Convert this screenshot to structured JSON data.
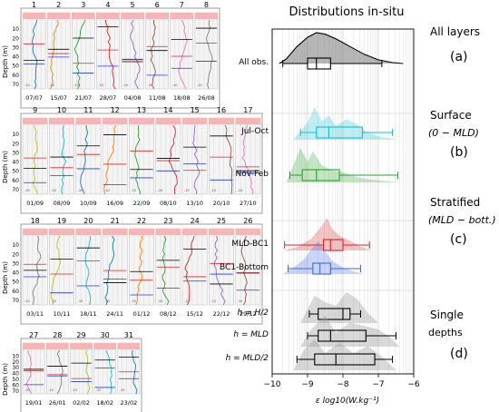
{
  "profiles": {
    "depth_axis_label": "Depth (m)",
    "depth_ticks": [
      10,
      20,
      30,
      40,
      50,
      60,
      70
    ],
    "rows": [
      {
        "panels": [
          {
            "num": "1",
            "date": "07/07"
          },
          {
            "num": "2",
            "date": "15/07"
          },
          {
            "num": "3",
            "date": "21/07"
          },
          {
            "num": "4",
            "date": "28/07"
          },
          {
            "num": "5",
            "date": "04/08"
          },
          {
            "num": "6",
            "date": "11/08"
          },
          {
            "num": "7",
            "date": "18/08"
          },
          {
            "num": "8",
            "date": "26/08"
          }
        ]
      },
      {
        "panels": [
          {
            "num": "9",
            "date": "01/09"
          },
          {
            "num": "10",
            "date": "08/09"
          },
          {
            "num": "11",
            "date": "10/09"
          },
          {
            "num": "12",
            "date": "16/09"
          },
          {
            "num": "13",
            "date": "22/09"
          },
          {
            "num": "14",
            "date": "08/10"
          },
          {
            "num": "15",
            "date": "13/10"
          },
          {
            "num": "16",
            "date": "20/10"
          },
          {
            "num": "17",
            "date": "27/10"
          }
        ]
      },
      {
        "panels": [
          {
            "num": "18",
            "date": "03/11"
          },
          {
            "num": "19",
            "date": "10/11"
          },
          {
            "num": "20",
            "date": "18/11"
          },
          {
            "num": "21",
            "date": "24/11"
          },
          {
            "num": "22",
            "date": "01/12"
          },
          {
            "num": "23",
            "date": "08/12"
          },
          {
            "num": "24",
            "date": "15/12"
          },
          {
            "num": "25",
            "date": "22/12"
          },
          {
            "num": "26",
            "date": "29/12"
          }
        ]
      },
      {
        "panels": [
          {
            "num": "27",
            "date": "19/01"
          },
          {
            "num": "28",
            "date": "26/01"
          },
          {
            "num": "29",
            "date": "02/02"
          },
          {
            "num": "30",
            "date": "18/02"
          },
          {
            "num": "31",
            "date": "23/02"
          }
        ]
      }
    ],
    "line_colors": [
      "#1f77b4",
      "#ff7f0e",
      "#2ca02c",
      "#d62728",
      "#9467bd",
      "#8c564b",
      "#e377c2",
      "#7f7f7f",
      "#bcbd22",
      "#17becf"
    ],
    "header_color": "#f4b6b6"
  },
  "chart_data": {
    "type": "box",
    "title": "Distributions in-situ",
    "xlabel": "ε  log10(W.kg⁻¹)",
    "xlim": [
      -10,
      -6
    ],
    "xticks": [
      -10,
      -9,
      -8,
      -7,
      -6
    ],
    "groups": [
      {
        "label": "All obs.",
        "color": "#000000",
        "box": {
          "whisker_low": -9.7,
          "q1": -9.0,
          "median": -8.75,
          "q3": -8.35,
          "whisker_high": -6.9
        },
        "density": [
          [
            -9.8,
            0
          ],
          [
            -9.6,
            0.15
          ],
          [
            -9.3,
            0.55
          ],
          [
            -9.0,
            0.85
          ],
          [
            -8.75,
            1.0
          ],
          [
            -8.5,
            0.95
          ],
          [
            -8.2,
            0.8
          ],
          [
            -7.8,
            0.55
          ],
          [
            -7.4,
            0.3
          ],
          [
            -7.0,
            0.12
          ],
          [
            -6.6,
            0.03
          ],
          [
            -6.3,
            0
          ]
        ]
      },
      {
        "label": "Jul-Oct",
        "color": "#17becf",
        "box": {
          "whisker_low": -9.2,
          "q1": -8.75,
          "median": -8.4,
          "q3": -7.45,
          "whisker_high": -6.6
        },
        "density": [
          [
            -9.4,
            0
          ],
          [
            -9.2,
            0.25
          ],
          [
            -9.0,
            0.5
          ],
          [
            -8.8,
            0.95
          ],
          [
            -8.6,
            0.55
          ],
          [
            -8.4,
            0.7
          ],
          [
            -8.2,
            0.4
          ],
          [
            -7.9,
            0.6
          ],
          [
            -7.6,
            0.45
          ],
          [
            -7.3,
            0.2
          ],
          [
            -7.0,
            0.1
          ],
          [
            -6.7,
            0.05
          ],
          [
            -6.5,
            0
          ]
        ]
      },
      {
        "label": "Nov-Feb",
        "color": "#2ca02c",
        "box": {
          "whisker_low": -9.5,
          "q1": -9.15,
          "median": -8.75,
          "q3": -8.1,
          "whisker_high": -6.45
        },
        "density": [
          [
            -9.6,
            0
          ],
          [
            -9.4,
            0.5
          ],
          [
            -9.2,
            1.0
          ],
          [
            -9.0,
            0.6
          ],
          [
            -8.85,
            0.9
          ],
          [
            -8.6,
            0.5
          ],
          [
            -8.3,
            0.35
          ],
          [
            -8.0,
            0.3
          ],
          [
            -7.6,
            0.15
          ],
          [
            -7.2,
            0.08
          ],
          [
            -6.8,
            0.04
          ],
          [
            -6.4,
            0
          ]
        ]
      },
      {
        "label": "MLD-BC1",
        "color": "#d62728",
        "box": {
          "whisker_low": -9.65,
          "q1": -8.55,
          "median": -8.35,
          "q3": -8.0,
          "whisker_high": -7.25
        },
        "density": [
          [
            -9.7,
            0
          ],
          [
            -9.3,
            0.1
          ],
          [
            -8.9,
            0.35
          ],
          [
            -8.6,
            0.75
          ],
          [
            -8.45,
            1.0
          ],
          [
            -8.3,
            0.65
          ],
          [
            -8.1,
            0.45
          ],
          [
            -7.8,
            0.3
          ],
          [
            -7.5,
            0.12
          ],
          [
            -7.2,
            0
          ]
        ]
      },
      {
        "label": "BC1-Bottom",
        "color": "#4169e1",
        "box": {
          "whisker_low": -9.55,
          "q1": -8.85,
          "median": -8.65,
          "q3": -8.35,
          "whisker_high": -7.5
        },
        "density": [
          [
            -9.7,
            0
          ],
          [
            -9.4,
            0.2
          ],
          [
            -9.1,
            0.45
          ],
          [
            -8.9,
            0.75
          ],
          [
            -8.7,
            1.0
          ],
          [
            -8.5,
            0.7
          ],
          [
            -8.3,
            0.4
          ],
          [
            -8.0,
            0.2
          ],
          [
            -7.7,
            0.08
          ],
          [
            -7.4,
            0
          ]
        ]
      },
      {
        "label": "h = H/2",
        "color": "#000000",
        "box": {
          "whisker_low": -8.95,
          "q1": -8.7,
          "median": -8.0,
          "q3": -7.8,
          "whisker_high": -7.5
        },
        "density": [
          [
            -9.2,
            0
          ],
          [
            -9.0,
            0.4
          ],
          [
            -8.8,
            0.8
          ],
          [
            -8.5,
            0.6
          ],
          [
            -8.2,
            0.5
          ],
          [
            -7.9,
            0.9
          ],
          [
            -7.6,
            0.7
          ],
          [
            -7.3,
            0.3
          ],
          [
            -7.0,
            0
          ]
        ]
      },
      {
        "label": "h = MLD",
        "color": "#000000",
        "box": {
          "whisker_low": -9.0,
          "q1": -8.7,
          "median": -8.35,
          "q3": -7.35,
          "whisker_high": -6.5
        },
        "density": [
          [
            -9.2,
            0
          ],
          [
            -8.9,
            0.5
          ],
          [
            -8.5,
            0.9
          ],
          [
            -8.2,
            0.4
          ],
          [
            -7.8,
            0.7
          ],
          [
            -7.4,
            0.6
          ],
          [
            -7.0,
            0.5
          ],
          [
            -6.7,
            0.3
          ],
          [
            -6.4,
            0
          ]
        ]
      },
      {
        "label": "h = MLD/2",
        "color": "#000000",
        "box": {
          "whisker_low": -9.3,
          "q1": -8.8,
          "median": -8.2,
          "q3": -7.1,
          "whisker_high": -6.6
        },
        "density": [
          [
            -9.4,
            0
          ],
          [
            -9.1,
            0.6
          ],
          [
            -8.8,
            0.9
          ],
          [
            -8.5,
            0.5
          ],
          [
            -8.1,
            0.8
          ],
          [
            -7.7,
            0.5
          ],
          [
            -7.3,
            0.7
          ],
          [
            -6.9,
            0.4
          ],
          [
            -6.5,
            0
          ]
        ]
      }
    ],
    "annotations": [
      {
        "text": "All layers",
        "letter": "(a)"
      },
      {
        "text": "Surface",
        "text2": "(0 − MLD)",
        "letter": "(b)"
      },
      {
        "text": "Stratified",
        "text2": "(MLD − bott.)",
        "letter": "(c)"
      },
      {
        "text": "Single",
        "text2": "depths",
        "letter": "(d)"
      }
    ]
  }
}
